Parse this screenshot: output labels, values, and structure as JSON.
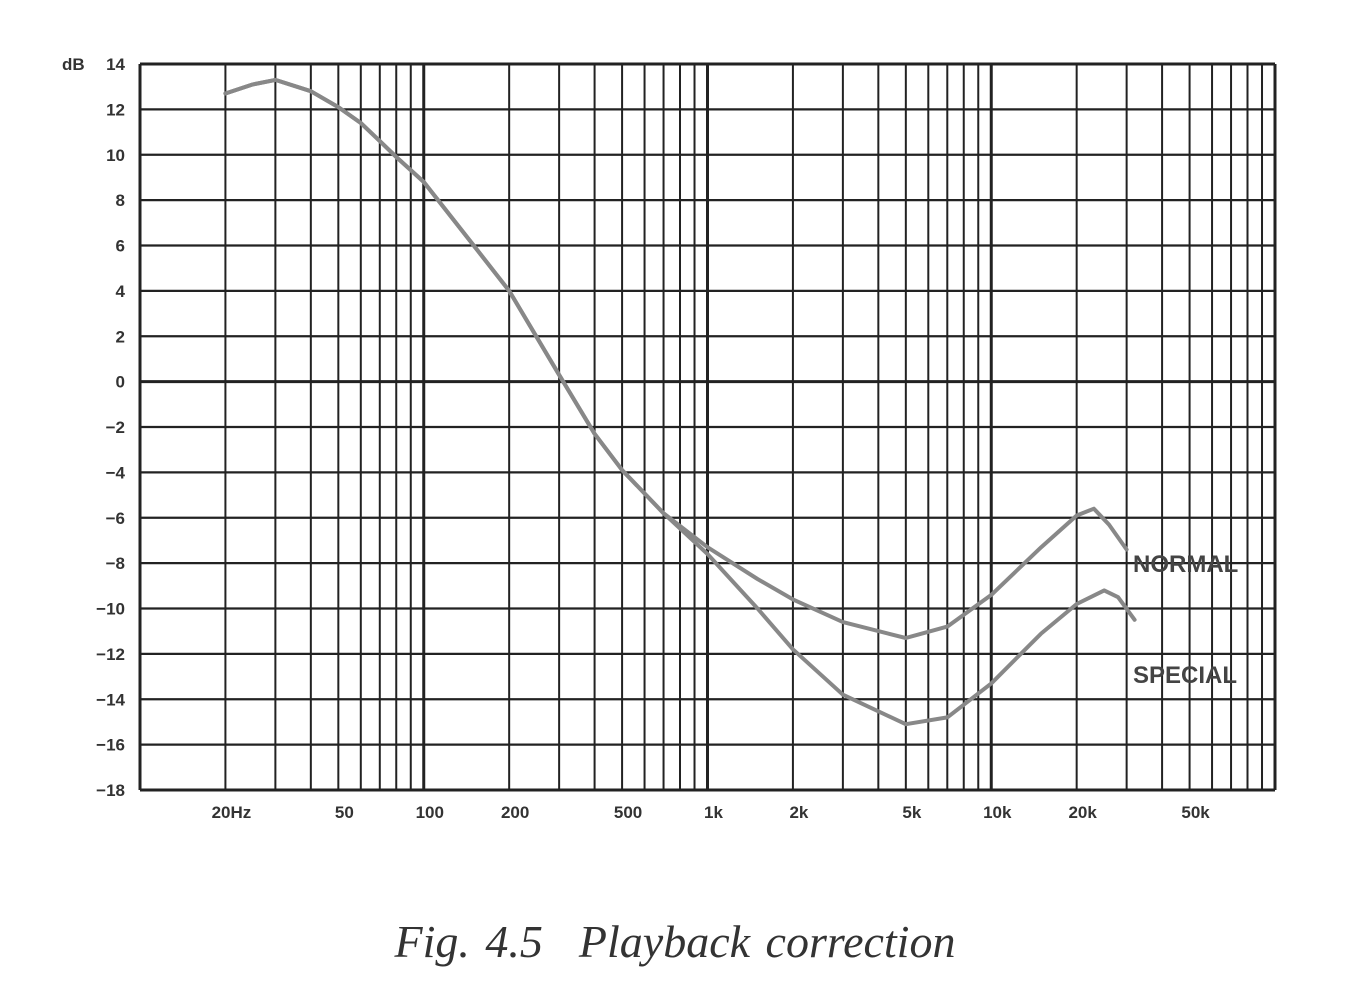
{
  "chart_data": {
    "type": "line",
    "title": "",
    "caption": {
      "number": "Fig. 4.5",
      "text": "Playback correction"
    },
    "ylabel": "dB",
    "xlabel": "",
    "xscale": "log",
    "xlim": [
      10,
      100000
    ],
    "ylim": [
      -18,
      14
    ],
    "grid": true,
    "yticks": [
      14,
      12,
      10,
      8,
      6,
      4,
      2,
      0,
      -2,
      -4,
      -6,
      -8,
      -10,
      -12,
      -14,
      -16,
      -18
    ],
    "ytick_labels": [
      "14",
      "12",
      "10",
      "8",
      "6",
      "4",
      "2",
      "0",
      "−2",
      "−4",
      "−6",
      "−8",
      "−10",
      "−12",
      "−14",
      "−16",
      "−18"
    ],
    "xticks": [
      20,
      50,
      100,
      200,
      500,
      1000,
      2000,
      5000,
      10000,
      20000,
      50000
    ],
    "xtick_labels": [
      "20Hz",
      "50",
      "100",
      "200",
      "500",
      "1k",
      "2k",
      "5k",
      "10k",
      "20k",
      "50k"
    ],
    "series": [
      {
        "name": "NORMAL",
        "color": "#888888",
        "x": [
          20,
          25,
          30,
          40,
          50,
          60,
          70,
          80,
          100,
          150,
          200,
          300,
          400,
          500,
          700,
          1000,
          1500,
          2000,
          3000,
          5000,
          7000,
          10000,
          15000,
          20000,
          23000,
          26000,
          30000
        ],
        "y": [
          12.7,
          13.1,
          13.3,
          12.8,
          12.1,
          11.4,
          10.6,
          9.9,
          8.8,
          6.0,
          4.0,
          0.3,
          -2.3,
          -3.9,
          -5.8,
          -7.3,
          -8.7,
          -9.6,
          -10.6,
          -11.3,
          -10.8,
          -9.4,
          -7.3,
          -5.9,
          -5.6,
          -6.3,
          -7.4
        ]
      },
      {
        "name": "SPECIAL",
        "color": "#888888",
        "x": [
          20,
          25,
          30,
          40,
          50,
          60,
          70,
          80,
          100,
          150,
          200,
          300,
          400,
          500,
          700,
          1000,
          1500,
          2000,
          3000,
          5000,
          7000,
          10000,
          15000,
          20000,
          25000,
          28000,
          32000
        ],
        "y": [
          12.7,
          13.1,
          13.3,
          12.8,
          12.1,
          11.4,
          10.6,
          9.9,
          8.8,
          6.0,
          4.0,
          0.3,
          -2.3,
          -3.9,
          -5.8,
          -7.6,
          -10.0,
          -11.8,
          -13.8,
          -15.1,
          -14.8,
          -13.3,
          -11.1,
          -9.8,
          -9.2,
          -9.5,
          -10.5
        ]
      }
    ]
  }
}
